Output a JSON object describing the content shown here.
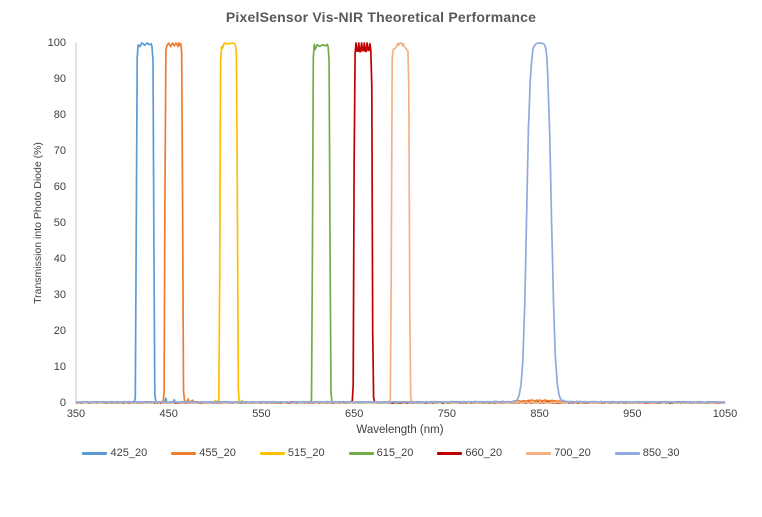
{
  "title": "PixelSensor Vis-NIR Theoretical Performance",
  "colors": {
    "axis_line": "#D0CECE",
    "tick_text": "#404040",
    "title_text": "#595959"
  },
  "chart_data": {
    "type": "line",
    "title": "PixelSensor Vis-NIR Theoretical Performance",
    "xlabel": "Wavelength (nm)",
    "ylabel": "Transmission into Photo Diode (%)",
    "xlim": [
      350,
      1050
    ],
    "ylim": [
      0,
      100
    ],
    "x_ticks": [
      350,
      450,
      550,
      650,
      750,
      850,
      950,
      1050
    ],
    "y_ticks": [
      0,
      10,
      20,
      30,
      40,
      50,
      60,
      70,
      80,
      90,
      100
    ],
    "grid": false,
    "legend_position": "bottom",
    "series": [
      {
        "name": "425_20",
        "color": "#5B9BD5",
        "center_nm": 425,
        "bandwidth_nm": 20,
        "peak_percent": 100,
        "points": [
          [
            350,
            0
          ],
          [
            410,
            0
          ],
          [
            413,
            0.2
          ],
          [
            414,
            1.5
          ],
          [
            415,
            50
          ],
          [
            416,
            96
          ],
          [
            417,
            99.5
          ],
          [
            419,
            99
          ],
          [
            421,
            100
          ],
          [
            424,
            99.4
          ],
          [
            427,
            100
          ],
          [
            429,
            99.5
          ],
          [
            431,
            99.8
          ],
          [
            432,
            99
          ],
          [
            433,
            95
          ],
          [
            434,
            45
          ],
          [
            435,
            2.5
          ],
          [
            436,
            0.3
          ],
          [
            438,
            0
          ],
          [
            446,
            0
          ],
          [
            447,
            1.3
          ],
          [
            448,
            0
          ],
          [
            455,
            0
          ],
          [
            456,
            0.9
          ],
          [
            457,
            0
          ],
          [
            1050,
            0
          ]
        ]
      },
      {
        "name": "455_20",
        "color": "#ED7D31",
        "center_nm": 455,
        "bandwidth_nm": 20,
        "peak_percent": 100,
        "points": [
          [
            350,
            0
          ],
          [
            442,
            0
          ],
          [
            444,
            0.3
          ],
          [
            445,
            3
          ],
          [
            446,
            60
          ],
          [
            447,
            98
          ],
          [
            448,
            99.3
          ],
          [
            450,
            100
          ],
          [
            452,
            99
          ],
          [
            454,
            100
          ],
          [
            456,
            99.2
          ],
          [
            458,
            100
          ],
          [
            460,
            99
          ],
          [
            461,
            100
          ],
          [
            462,
            99.4
          ],
          [
            463,
            99.8
          ],
          [
            464,
            97
          ],
          [
            465,
            55
          ],
          [
            466,
            3.5
          ],
          [
            467,
            0.4
          ],
          [
            469,
            0
          ],
          [
            471,
            1.1
          ],
          [
            472,
            0
          ],
          [
            476,
            0.7
          ],
          [
            477,
            0
          ],
          [
            560,
            0
          ],
          [
            820,
            0.1
          ],
          [
            830,
            0.4
          ],
          [
            850,
            0.6
          ],
          [
            868,
            0.4
          ],
          [
            878,
            0.1
          ],
          [
            1050,
            0
          ]
        ]
      },
      {
        "name": "515_20",
        "color": "#FFC000",
        "center_nm": 515,
        "bandwidth_nm": 20,
        "peak_percent": 100,
        "points": [
          [
            350,
            0
          ],
          [
            499,
            0
          ],
          [
            500,
            0.6
          ],
          [
            501,
            0
          ],
          [
            502,
            0
          ],
          [
            504,
            0.8
          ],
          [
            505,
            35
          ],
          [
            506,
            95
          ],
          [
            507,
            99
          ],
          [
            508,
            98.5
          ],
          [
            510,
            100
          ],
          [
            514,
            99.7
          ],
          [
            518,
            100
          ],
          [
            521,
            99.8
          ],
          [
            522,
            99.4
          ],
          [
            523,
            97
          ],
          [
            524,
            60
          ],
          [
            525,
            4
          ],
          [
            526,
            0.4
          ],
          [
            528,
            0
          ],
          [
            529,
            0.5
          ],
          [
            530,
            0
          ],
          [
            1050,
            0
          ]
        ]
      },
      {
        "name": "615_20",
        "color": "#70AD47",
        "center_nm": 615,
        "bandwidth_nm": 20,
        "peak_percent": 100,
        "points": [
          [
            350,
            0
          ],
          [
            602,
            0
          ],
          [
            604,
            0.8
          ],
          [
            605,
            40
          ],
          [
            606,
            96
          ],
          [
            607,
            99.6
          ],
          [
            608,
            98.2
          ],
          [
            610,
            99.5
          ],
          [
            613,
            99.1
          ],
          [
            616,
            99.5
          ],
          [
            619,
            99.2
          ],
          [
            621,
            99.6
          ],
          [
            622,
            98.8
          ],
          [
            623,
            95
          ],
          [
            624,
            45
          ],
          [
            625,
            3
          ],
          [
            626,
            0.3
          ],
          [
            628,
            0
          ],
          [
            1050,
            0
          ]
        ]
      },
      {
        "name": "660_20",
        "color": "#C00000",
        "center_nm": 660,
        "bandwidth_nm": 20,
        "peak_percent": 100,
        "points": [
          [
            350,
            0
          ],
          [
            646,
            0
          ],
          [
            648,
            0.4
          ],
          [
            649,
            5
          ],
          [
            650,
            65
          ],
          [
            651,
            97
          ],
          [
            652,
            100
          ],
          [
            653.5,
            96.6
          ],
          [
            655,
            100
          ],
          [
            656.5,
            96.4
          ],
          [
            658,
            100
          ],
          [
            659.5,
            96.8
          ],
          [
            661,
            100
          ],
          [
            662.5,
            96.5
          ],
          [
            664,
            100
          ],
          [
            665.5,
            97
          ],
          [
            667,
            99.8
          ],
          [
            668,
            98
          ],
          [
            669,
            88
          ],
          [
            670,
            20
          ],
          [
            671,
            1.5
          ],
          [
            672,
            0.2
          ],
          [
            674,
            0
          ],
          [
            1050,
            0
          ]
        ]
      },
      {
        "name": "700_20",
        "color": "#F4B183",
        "center_nm": 700,
        "bandwidth_nm": 20,
        "peak_percent": 100,
        "points": [
          [
            350,
            0
          ],
          [
            687,
            0
          ],
          [
            689,
            0.8
          ],
          [
            690,
            35
          ],
          [
            691,
            95.5
          ],
          [
            692,
            98.2
          ],
          [
            694,
            98.4
          ],
          [
            696,
            99.2
          ],
          [
            697,
            99.8
          ],
          [
            698,
            99.4
          ],
          [
            699,
            100
          ],
          [
            701,
            100
          ],
          [
            702,
            99.3
          ],
          [
            703,
            99.8
          ],
          [
            704,
            99
          ],
          [
            706,
            98.4
          ],
          [
            708,
            97.8
          ],
          [
            709,
            88
          ],
          [
            710,
            25
          ],
          [
            711,
            2
          ],
          [
            712,
            0.3
          ],
          [
            714,
            0
          ],
          [
            1050,
            0
          ]
        ]
      },
      {
        "name": "850_30",
        "color": "#8FAADC",
        "center_nm": 850,
        "bandwidth_nm": 30,
        "peak_percent": 100,
        "points": [
          [
            350,
            0.1
          ],
          [
            500,
            0.1
          ],
          [
            700,
            0.1
          ],
          [
            800,
            0.15
          ],
          [
            820,
            0.2
          ],
          [
            824,
            0.4
          ],
          [
            826,
            0.9
          ],
          [
            828,
            2.2
          ],
          [
            830,
            5
          ],
          [
            832,
            12
          ],
          [
            834,
            27
          ],
          [
            836,
            52
          ],
          [
            838,
            76
          ],
          [
            840,
            90
          ],
          [
            842,
            96.5
          ],
          [
            843,
            98.6
          ],
          [
            845,
            99.5
          ],
          [
            847,
            99.9
          ],
          [
            850,
            100
          ],
          [
            853,
            99.9
          ],
          [
            855,
            99.6
          ],
          [
            856,
            99.2
          ],
          [
            857,
            98
          ],
          [
            858,
            95.5
          ],
          [
            859,
            90
          ],
          [
            861,
            74
          ],
          [
            863,
            50
          ],
          [
            865,
            28
          ],
          [
            867,
            13
          ],
          [
            869,
            5.5
          ],
          [
            871,
            2.2
          ],
          [
            873,
            0.9
          ],
          [
            876,
            0.4
          ],
          [
            882,
            0.2
          ],
          [
            950,
            0.1
          ],
          [
            1050,
            0.1
          ]
        ]
      }
    ]
  }
}
